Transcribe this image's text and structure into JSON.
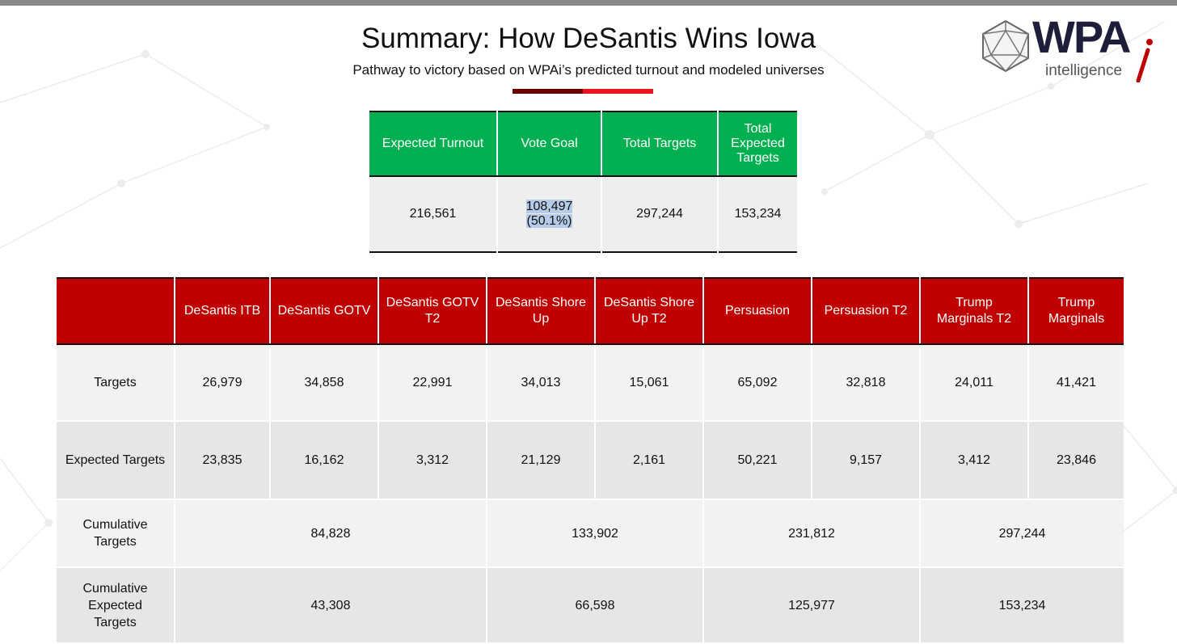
{
  "header": {
    "title": "Summary: How DeSantis Wins Iowa",
    "subtitle": "Pathway to victory based on WPAi’s predicted turnout and modeled universes",
    "accent_dark": "#6b0000",
    "accent_red": "#e8151c"
  },
  "logo": {
    "wordmark": "WPA",
    "tagline": "intelligence",
    "color": "#1e1e3a",
    "accent": "#c00000"
  },
  "summary_table": {
    "header_color": "#00b050",
    "headers": [
      "Expected Turnout",
      "Vote Goal",
      "Total Targets",
      "Total Expected Targets"
    ],
    "values": {
      "expected_turnout": "216,561",
      "vote_goal": "108,497",
      "vote_goal_pct": "(50.1%)",
      "total_targets": "297,244",
      "total_expected_targets": "153,234"
    }
  },
  "targets_table": {
    "header_color": "#c00000",
    "headers": [
      "",
      "DeSantis ITB",
      "DeSantis GOTV",
      "DeSantis GOTV T2",
      "DeSantis Shore Up",
      "DeSantis Shore Up T2",
      "Persuasion",
      "Persuasion T2",
      "Trump Marginals T2",
      "Trump Marginals"
    ],
    "rows": [
      {
        "label": "Targets",
        "values": [
          "26,979",
          "34,858",
          "22,991",
          "34,013",
          "15,061",
          "65,092",
          "32,818",
          "24,011",
          "41,421"
        ]
      },
      {
        "label": "Expected Targets",
        "values": [
          "23,835",
          "16,162",
          "3,312",
          "21,129",
          "2,161",
          "50,221",
          "9,157",
          "3,412",
          "23,846"
        ]
      },
      {
        "label": "Cumulative Targets",
        "values": [
          "84,828",
          "133,902",
          "231,812",
          "297,244"
        ]
      },
      {
        "label": "Cumulative Expected Targets",
        "values": [
          "43,308",
          "66,598",
          "125,977",
          "153,234"
        ]
      }
    ]
  }
}
